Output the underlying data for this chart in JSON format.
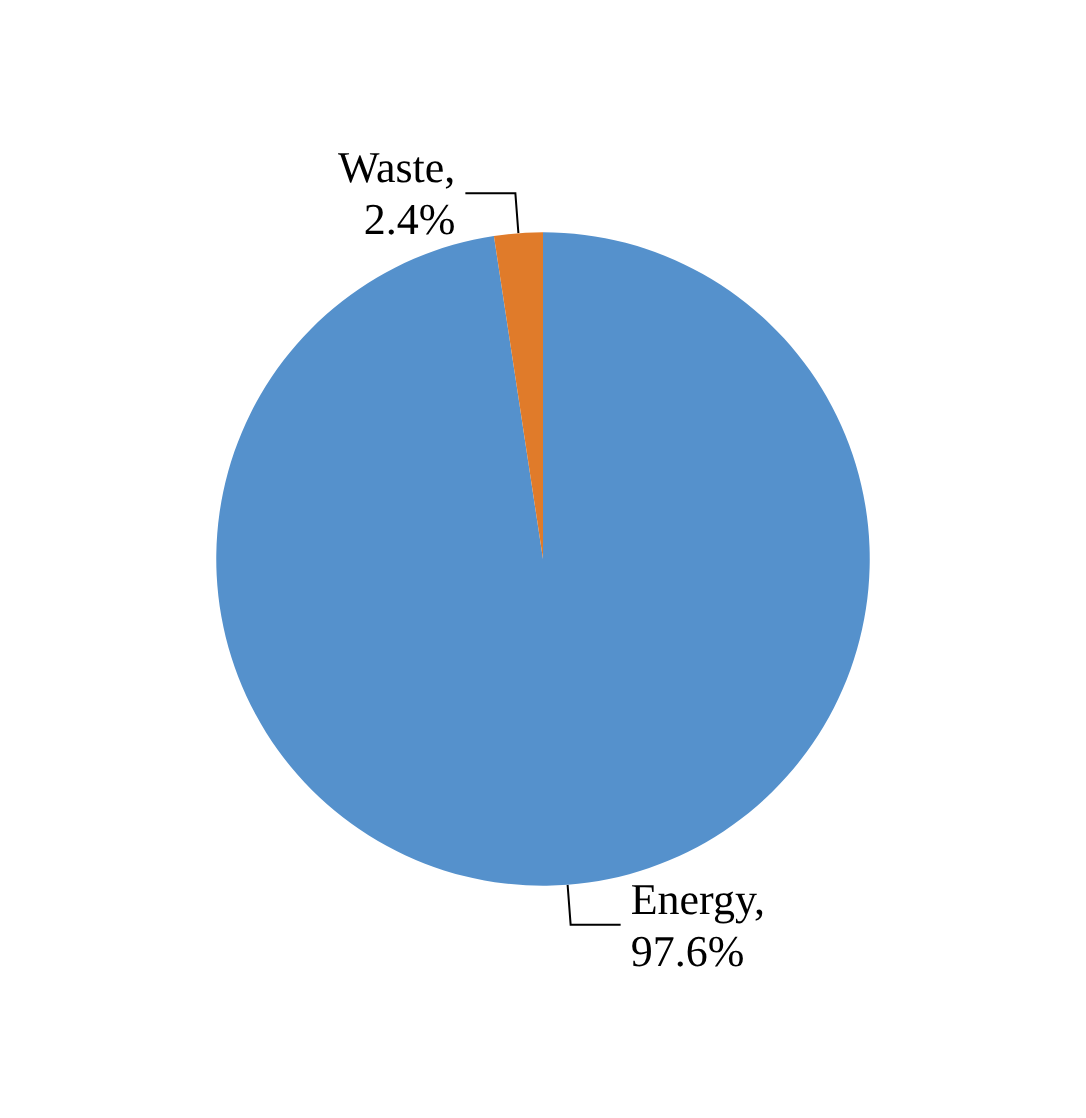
{
  "chart_data": {
    "type": "pie",
    "categories": [
      "Energy",
      "Waste"
    ],
    "values": [
      97.6,
      2.4
    ],
    "colors": [
      "#5591cc",
      "#e07b2a"
    ],
    "value_labels": [
      ",\n97.6%",
      ",\n2.4%"
    ],
    "legend": false
  }
}
